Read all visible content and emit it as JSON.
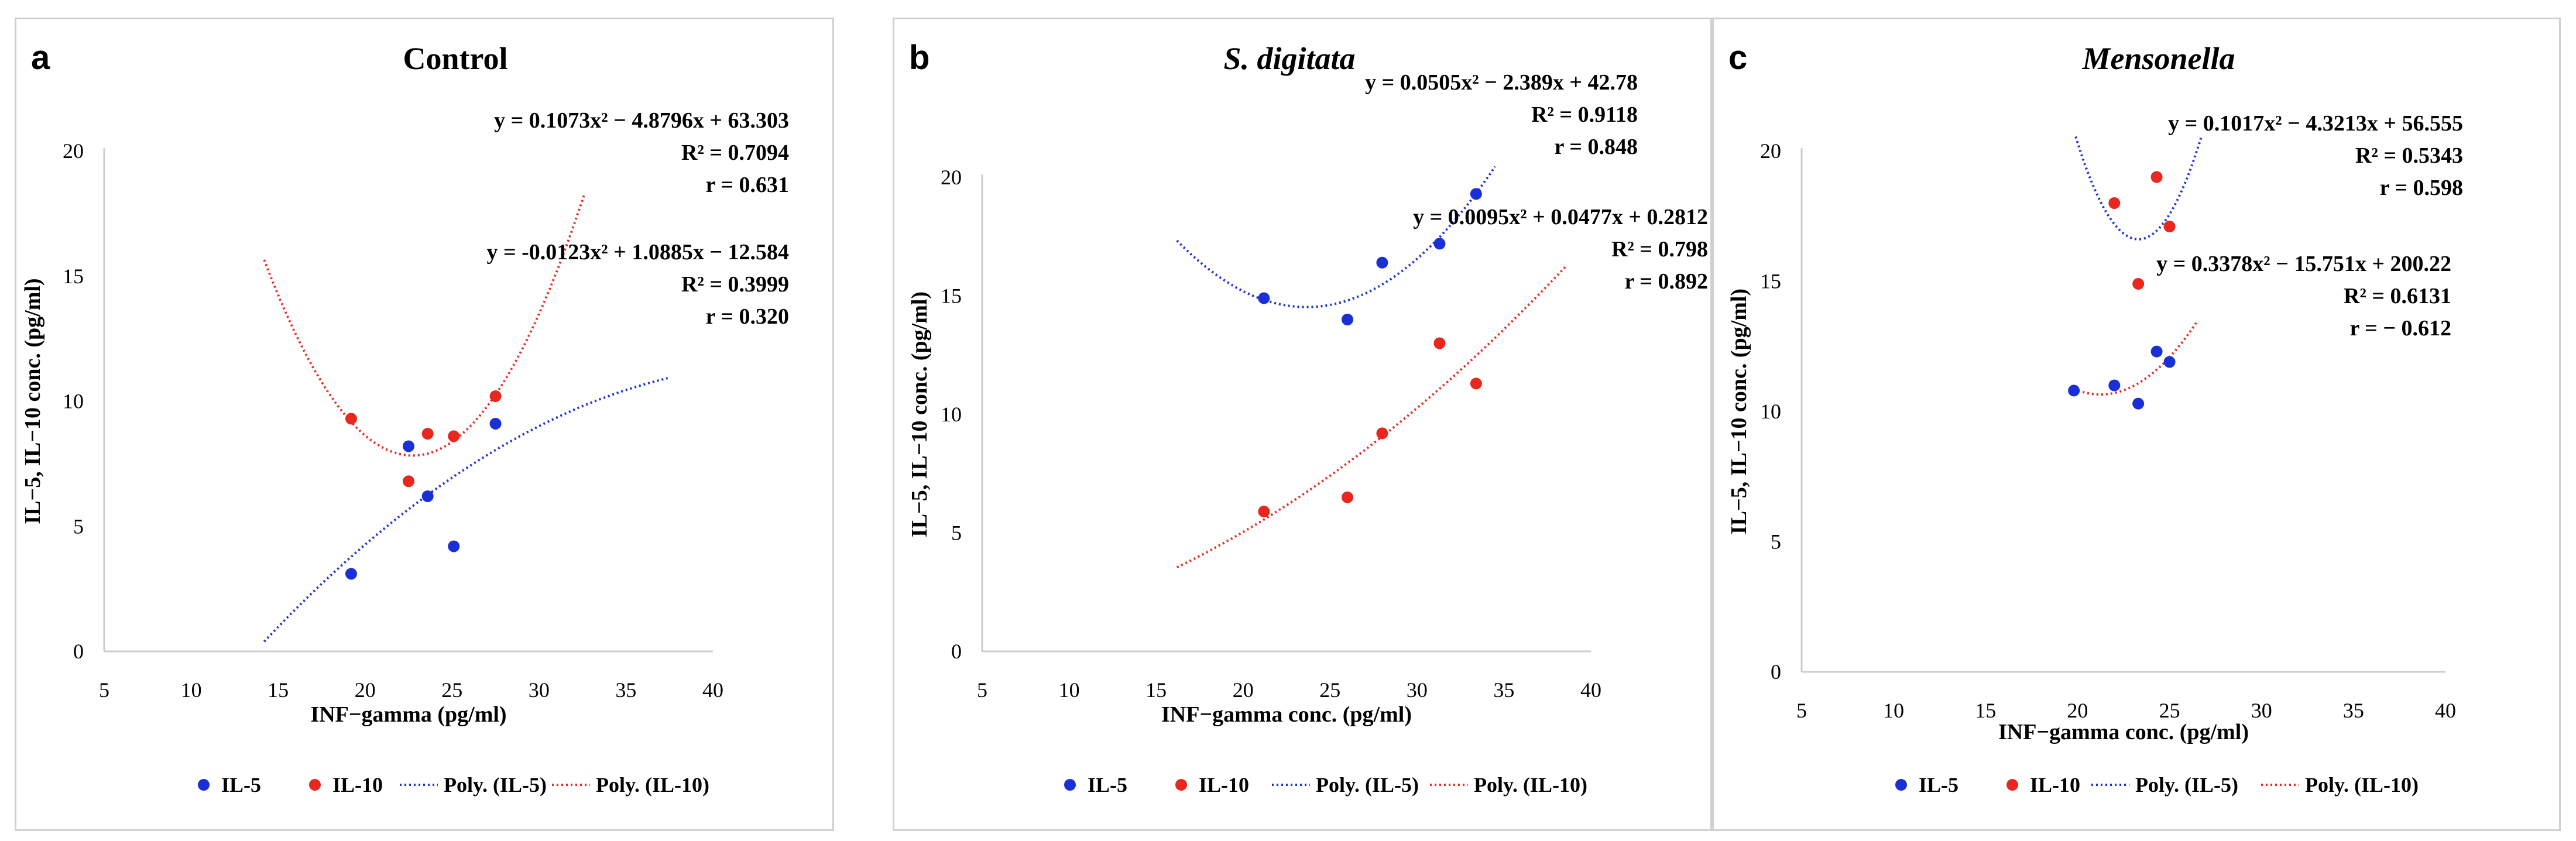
{
  "colors": {
    "il5": "#1a2fd6",
    "il10": "#e8281e",
    "axis": "#cccccc",
    "text": "#000000"
  },
  "legend_labels": [
    "IL-5",
    "IL-10",
    "Poly. (IL-5)",
    "Poly. (IL-10)"
  ],
  "chart_data": [
    {
      "type": "scatter",
      "letter": "a",
      "title": "Control",
      "title_italic": false,
      "xlabel": "INF−gamma (pg/ml)",
      "ylabel": "IL−5, IL−10 conc. (pg/ml)",
      "xlim": [
        5,
        40
      ],
      "ylim": [
        0,
        20
      ],
      "xticks": [
        5,
        10,
        15,
        20,
        25,
        30,
        35,
        40
      ],
      "yticks": [
        0,
        5,
        10,
        15,
        20
      ],
      "series": [
        {
          "name": "IL-5",
          "color": "#1a2fd6",
          "x": [
            19.2,
            22.5,
            23.6,
            25.1,
            27.5
          ],
          "y": [
            3.1,
            8.2,
            6.2,
            4.2,
            9.1
          ]
        },
        {
          "name": "IL-10",
          "color": "#e8281e",
          "x": [
            19.2,
            22.5,
            23.6,
            25.1,
            27.5
          ],
          "y": [
            9.3,
            6.8,
            8.7,
            8.6,
            10.2
          ]
        }
      ],
      "fits": [
        {
          "name": "Poly. (IL-5)",
          "color": "#1a2fd6",
          "coef": [
            -0.0123,
            1.0885,
            -12.584
          ],
          "xrange": [
            14.2,
            37.4
          ]
        },
        {
          "name": "Poly. (IL-10)",
          "color": "#e8281e",
          "coef": [
            0.1073,
            -4.8796,
            63.303
          ],
          "xrange": [
            14.2,
            32.6
          ]
        }
      ],
      "annotations": [
        {
          "lines": [
            "y = 0.1073x² − 4.8796x + 63.303",
            "R² = 0.7094",
            "r = 0.631"
          ]
        },
        {
          "lines": [
            "y = -0.0123x² + 1.0885x − 12.584",
            "R² = 0.3999",
            "r = 0.320"
          ]
        }
      ]
    },
    {
      "type": "scatter",
      "letter": "b",
      "title": "S. digitata",
      "title_italic": true,
      "xlabel": "INF−gamma conc. (pg/ml)",
      "ylabel": "IL−5, IL−10 conc. (pg/ml)",
      "xlim": [
        5,
        40
      ],
      "ylim": [
        0,
        20
      ],
      "xticks": [
        5,
        10,
        15,
        20,
        25,
        30,
        35,
        40
      ],
      "yticks": [
        0,
        5,
        10,
        15,
        20
      ],
      "series": [
        {
          "name": "IL-5",
          "color": "#1a2fd6",
          "x": [
            21.2,
            26.0,
            28.0,
            31.3,
            33.4
          ],
          "y": [
            14.9,
            14.0,
            16.4,
            17.2,
            19.3
          ]
        },
        {
          "name": "IL-10",
          "color": "#e8281e",
          "x": [
            21.2,
            26.0,
            28.0,
            31.3,
            33.4
          ],
          "y": [
            5.9,
            6.5,
            9.2,
            13.0,
            11.3
          ]
        }
      ],
      "fits": [
        {
          "name": "Poly. (IL-5)",
          "color": "#1a2fd6",
          "coef": [
            0.0505,
            -2.389,
            42.78
          ],
          "xrange": [
            16.2,
            34.8
          ]
        },
        {
          "name": "Poly. (IL-10)",
          "color": "#e8281e",
          "coef": [
            0.0095,
            0.0477,
            0.2812
          ],
          "xrange": [
            16.2,
            38.6
          ]
        }
      ],
      "annotations": [
        {
          "lines": [
            "y = 0.0505x² − 2.389x + 42.78",
            "R² = 0.9118",
            "r = 0.848"
          ]
        },
        {
          "lines": [
            "y = 0.0095x² + 0.0477x + 0.2812",
            "R² = 0.798",
            "r = 0.892"
          ]
        }
      ]
    },
    {
      "type": "scatter",
      "letter": "c",
      "title": "Mensonella",
      "title_italic": true,
      "xlabel": "INF−gamma conc. (pg/ml)",
      "ylabel": "IL−5, IL−10 conc. (pg/ml)",
      "xlim": [
        5,
        40
      ],
      "ylim": [
        0,
        20
      ],
      "xticks": [
        5,
        10,
        15,
        20,
        25,
        30,
        35,
        40
      ],
      "yticks": [
        0,
        5,
        10,
        15,
        20
      ],
      "series": [
        {
          "name": "IL-5",
          "color": "#1a2fd6",
          "x": [
            19.8,
            22.0,
            23.3,
            24.3,
            25.0
          ],
          "y": [
            10.8,
            11.0,
            10.3,
            12.3,
            11.9
          ]
        },
        {
          "name": "IL-10",
          "color": "#e8281e",
          "x": [
            22.0,
            23.3,
            24.3,
            25.0
          ],
          "y": [
            18.0,
            14.9,
            19.0,
            17.1
          ]
        }
      ],
      "fits": [
        {
          "name": "Poly. (IL-5)",
          "color": "#1a2fd6",
          "coef": [
            0.3378,
            -15.751,
            200.22
          ],
          "xrange": [
            14.8,
            30.9
          ]
        },
        {
          "name": "Poly. (IL-10)",
          "color": "#e8281e",
          "coef": [
            0.1017,
            -4.3213,
            56.555
          ],
          "xrange": [
            19.8,
            26.5
          ]
        }
      ],
      "annotations": [
        {
          "lines": [
            "y = 0.1017x² − 4.3213x + 56.555",
            "R² = 0.5343",
            "r = 0.598"
          ]
        },
        {
          "lines": [
            "y = 0.3378x² − 15.751x + 200.22",
            "R² = 0.6131",
            "r = − 0.612"
          ]
        }
      ]
    }
  ]
}
